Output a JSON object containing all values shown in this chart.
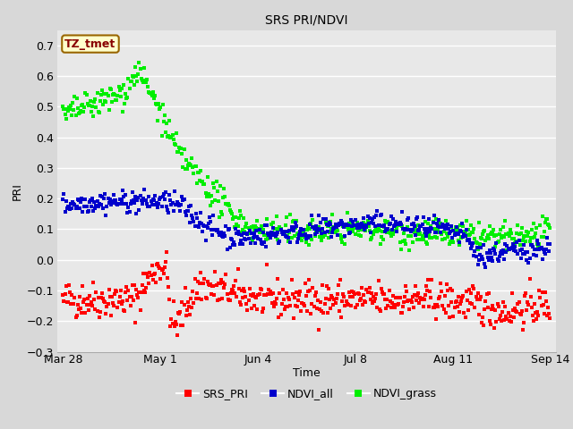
{
  "title": "SRS PRI/NDVI",
  "xlabel": "Time",
  "ylabel": "PRI",
  "ylim": [
    -0.3,
    0.75
  ],
  "yticks": [
    -0.3,
    -0.2,
    -0.1,
    0.0,
    0.1,
    0.2,
    0.3,
    0.4,
    0.5,
    0.6,
    0.7
  ],
  "xtick_labels": [
    "Mar 28",
    "May 1",
    "Jun 4",
    "Jul 8",
    "Aug 11",
    "Sep 14"
  ],
  "xtick_days": [
    0,
    34,
    68,
    102,
    136,
    170
  ],
  "series_colors": {
    "SRS_PRI": "#ff0000",
    "NDVI_all": "#0000cc",
    "NDVI_grass": "#00ee00"
  },
  "legend_label": "TZ_tmet",
  "fig_bg_color": "#d8d8d8",
  "plot_bg_color": "#e8e8e8",
  "grid_color": "#ffffff",
  "marker_size": 2.2,
  "n_points": 500
}
